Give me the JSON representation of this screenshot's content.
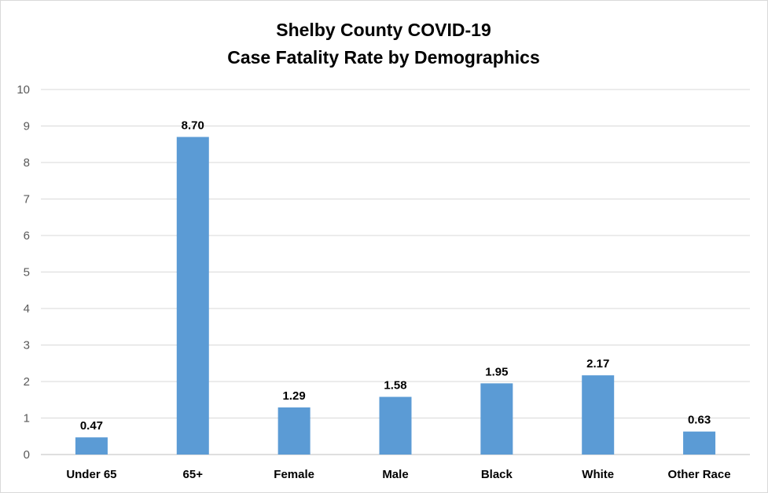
{
  "chart_data": {
    "type": "bar",
    "title": [
      "Shelby County COVID-19",
      "Case Fatality Rate by Demographics"
    ],
    "categories": [
      "Under 65",
      "65+",
      "Female",
      "Male",
      "Black",
      "White",
      "Other Race"
    ],
    "values": [
      0.47,
      8.7,
      1.29,
      1.58,
      1.95,
      2.17,
      0.63
    ],
    "data_labels": [
      "0.47",
      "8.70",
      "1.29",
      "1.58",
      "1.95",
      "2.17",
      "0.63"
    ],
    "ylim": [
      0,
      10
    ],
    "yticks": [
      "0",
      "1",
      "2",
      "3",
      "4",
      "5",
      "6",
      "7",
      "8",
      "9",
      "10"
    ],
    "xlabel": "",
    "ylabel": "",
    "grid": true,
    "legend": "none",
    "bar_color": "#5b9bd5"
  }
}
